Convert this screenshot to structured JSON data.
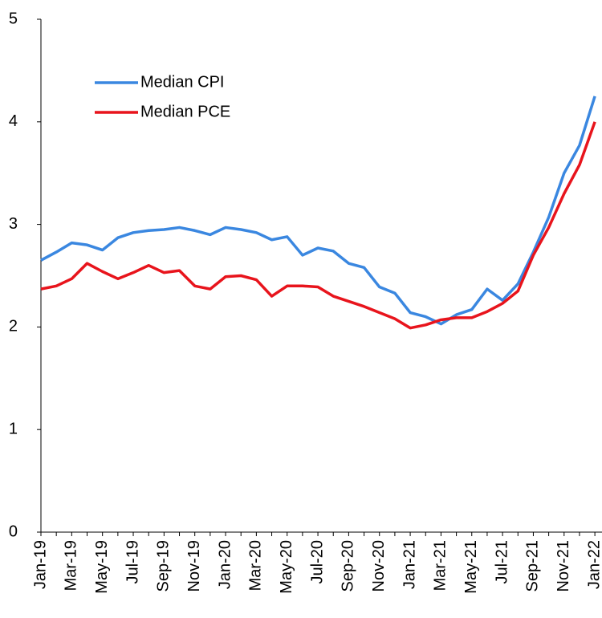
{
  "chart_data": {
    "type": "line",
    "categories": [
      "Jan-19",
      null,
      "Mar-19",
      null,
      "May-19",
      null,
      "Jul-19",
      null,
      "Sep-19",
      null,
      "Nov-19",
      null,
      "Jan-20",
      null,
      "Mar-20",
      null,
      "May-20",
      null,
      "Jul-20",
      null,
      "Sep-20",
      null,
      "Nov-20",
      null,
      "Jan-21",
      null,
      "Mar-21",
      null,
      "May-21",
      null,
      "Jul-21",
      null,
      "Sep-21",
      null,
      "Nov-21",
      null,
      "Jan-22"
    ],
    "series": [
      {
        "name": "Median CPI",
        "color": "#3a87e0",
        "values": [
          2.65,
          2.73,
          2.82,
          2.8,
          2.75,
          2.87,
          2.92,
          2.94,
          2.95,
          2.97,
          2.94,
          2.9,
          2.97,
          2.95,
          2.92,
          2.85,
          2.88,
          2.7,
          2.77,
          2.74,
          2.62,
          2.58,
          2.39,
          2.33,
          2.14,
          2.1,
          2.03,
          2.12,
          2.17,
          2.37,
          2.26,
          2.42,
          2.73,
          3.07,
          3.5,
          3.77,
          4.25
        ]
      },
      {
        "name": "Median PCE",
        "color": "#e8141c",
        "values": [
          2.37,
          2.4,
          2.47,
          2.62,
          2.54,
          2.47,
          2.53,
          2.6,
          2.53,
          2.55,
          2.4,
          2.37,
          2.49,
          2.5,
          2.46,
          2.3,
          2.4,
          2.4,
          2.39,
          2.3,
          2.25,
          2.2,
          2.14,
          2.08,
          1.99,
          2.02,
          2.07,
          2.09,
          2.09,
          2.15,
          2.23,
          2.35,
          2.7,
          2.97,
          3.3,
          3.58,
          4.0
        ]
      }
    ],
    "ylim": [
      0,
      5
    ],
    "yticks": [
      0,
      1,
      2,
      3,
      4,
      5
    ],
    "grid": false,
    "legend": "upper-left"
  }
}
